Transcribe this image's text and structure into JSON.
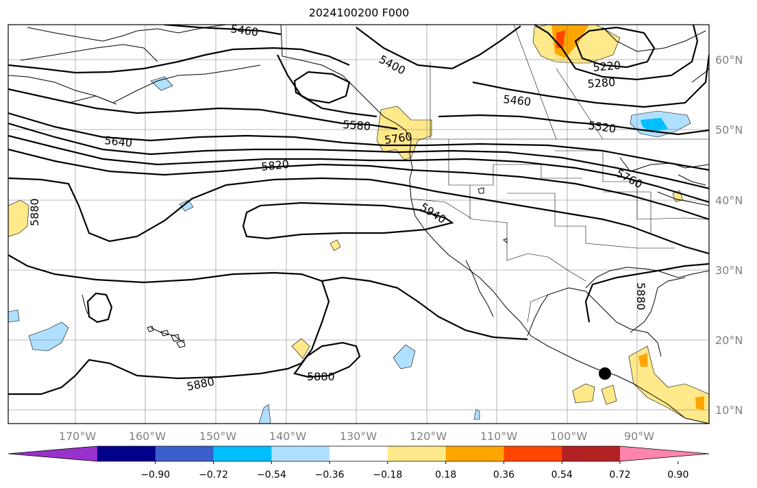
{
  "title": "2024100200 F000",
  "lon_ticks": [
    "170°W",
    "160°W",
    "150°W",
    "140°W",
    "130°W",
    "120°W",
    "110°W",
    "100°W",
    "90°W"
  ],
  "lat_ticks": [
    "60°N",
    "50°N",
    "40°N",
    "30°N",
    "20°N",
    "10°N"
  ],
  "colorbar": {
    "labels": [
      "−0.90",
      "−0.72",
      "−0.54",
      "−0.36",
      "−0.18",
      "0.18",
      "0.36",
      "0.54",
      "0.72",
      "0.90"
    ],
    "colors": [
      "#9932cc",
      "#00008b",
      "#3a5fcd",
      "#00bfff",
      "#b0e0ff",
      "#ffffff",
      "#ffe98a",
      "#ffa500",
      "#ff4500",
      "#b22222",
      "#ff85aa"
    ]
  },
  "contour_labels": [
    "5460",
    "5400",
    "5220",
    "5280",
    "5460",
    "5520",
    "5580",
    "5760",
    "5640",
    "5820",
    "5760",
    "5880",
    "5940",
    "5880",
    "5880",
    "5880"
  ],
  "marker": "storm-position-dot"
}
